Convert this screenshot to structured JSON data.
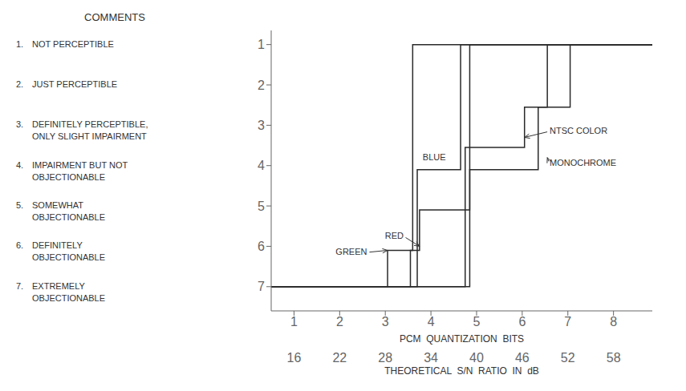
{
  "chart_data": {
    "type": "line",
    "x_label": "PCM  QUANTIZATION  BITS",
    "xlim": [
      0.5,
      8.85
    ],
    "xticks": [
      1,
      2,
      3,
      4,
      5,
      6,
      7,
      8
    ],
    "x2_label": "THEORETICAL  S/N  RATIO  IN  dB",
    "x2lim": [
      0.5,
      8.85
    ],
    "x2ticks": [
      {
        "value": 1,
        "label": "16"
      },
      {
        "value": 2,
        "label": "22"
      },
      {
        "value": 3,
        "label": "28"
      },
      {
        "value": 4,
        "label": "34"
      },
      {
        "value": 5,
        "label": "40"
      },
      {
        "value": 6,
        "label": "46"
      },
      {
        "value": 7,
        "label": "52"
      },
      {
        "value": 8,
        "label": "58"
      }
    ],
    "ylim": [
      7.6,
      0.65
    ],
    "yticks": [
      1,
      2,
      3,
      4,
      5,
      6,
      7
    ],
    "grid": false,
    "legend": false,
    "series": [
      {
        "x": [
          0.5,
          3.05,
          3.05,
          3.6,
          3.6,
          8.85
        ],
        "values": [
          7.0,
          7.0,
          6.1,
          6.1,
          1.0,
          1.0
        ],
        "color": "#2a2a2a"
      },
      {
        "x": [
          0.5,
          3.55,
          3.55,
          3.75,
          3.75,
          4.85,
          4.85,
          8.85
        ],
        "values": [
          7.0,
          7.0,
          6.1,
          6.1,
          5.1,
          5.1,
          1.0,
          1.0
        ],
        "color": "#2a2a2a"
      },
      {
        "x": [
          0.5,
          3.7,
          3.7,
          4.65,
          4.65,
          8.85
        ],
        "values": [
          7.0,
          7.0,
          4.1,
          4.1,
          1.0,
          1.0
        ],
        "color": "#2a2a2a"
      },
      {
        "x": [
          0.5,
          4.75,
          4.75,
          6.05,
          6.05,
          6.55,
          6.55,
          8.85
        ],
        "values": [
          7.0,
          7.0,
          3.55,
          3.55,
          2.55,
          2.55,
          1.0,
          1.0
        ],
        "color": "#2a2a2a"
      },
      {
        "x": [
          0.5,
          4.85,
          4.85,
          6.35,
          6.35,
          7.05,
          7.05,
          8.85
        ],
        "values": [
          7.0,
          7.0,
          4.1,
          4.1,
          2.55,
          2.55,
          1.0,
          1.0
        ],
        "color": "#2a2a2a"
      }
    ],
    "annotations": [
      {
        "text": "GREEN",
        "x": 2.6,
        "y": 6.15,
        "arrow_x": 3.05,
        "arrow_y": 6.1
      },
      {
        "text": "RED",
        "x": 3.4,
        "y": 5.75,
        "arrow_x": 3.75,
        "arrow_y": 6.0
      },
      {
        "text": "BLUE",
        "x": 3.82,
        "y": 3.8
      },
      {
        "text": "NTSC COLOR",
        "x": 6.6,
        "y": 3.15,
        "arrow_x": 6.05,
        "arrow_y": 3.3
      },
      {
        "text": "MONOCHROME",
        "x": 6.6,
        "y": 3.95,
        "arrow_x": 6.55,
        "arrow_y": 3.8
      }
    ],
    "comments": {
      "title": "COMMENTS",
      "items": [
        {
          "number": "1.",
          "lines": [
            "NOT PERCEPTIBLE"
          ],
          "y": 1
        },
        {
          "number": "2.",
          "lines": [
            "JUST PERCEPTIBLE"
          ],
          "y": 2
        },
        {
          "number": "3.",
          "lines": [
            "DEFINITELY PERCEPTIBLE,",
            "ONLY SLIGHT IMPAIRMENT"
          ],
          "y": 3
        },
        {
          "number": "4.",
          "lines": [
            "IMPAIRMENT BUT NOT",
            "OBJECTIONABLE"
          ],
          "y": 4
        },
        {
          "number": "5.",
          "lines": [
            "SOMEWHAT",
            "OBJECTIONABLE"
          ],
          "y": 5
        },
        {
          "number": "6.",
          "lines": [
            "DEFINITELY",
            "OBJECTIONABLE"
          ],
          "y": 6
        },
        {
          "number": "7.",
          "lines": [
            "EXTREMELY",
            "OBJECTIONABLE"
          ],
          "y": 7
        }
      ]
    }
  }
}
